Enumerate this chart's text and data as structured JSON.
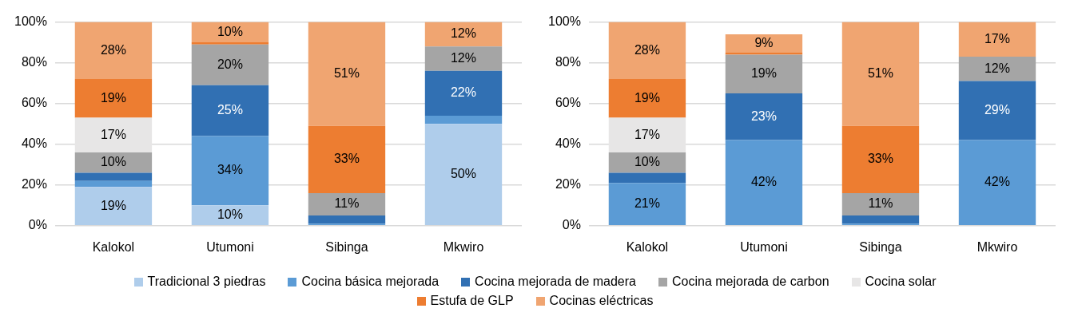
{
  "chart_data": [
    {
      "type": "bar",
      "stacked": true,
      "categories": [
        "Kalokol",
        "Utumoni",
        "Sibinga",
        "Mkwiro"
      ],
      "ylim": [
        0,
        100
      ],
      "yticks": [
        {
          "value": 0,
          "label": "0%"
        },
        {
          "value": 20,
          "label": "20%"
        },
        {
          "value": 40,
          "label": "40%"
        },
        {
          "value": 60,
          "label": "60%"
        },
        {
          "value": 80,
          "label": "80%"
        },
        {
          "value": 100,
          "label": "100%"
        }
      ],
      "grid": "y",
      "legend": "bottom",
      "series": [
        {
          "name": "Tradicional 3 piedras",
          "color": "#afcdeb",
          "values": [
            19,
            10,
            0,
            50
          ],
          "value_labels": [
            "19%",
            "10%",
            null,
            "50%"
          ]
        },
        {
          "name": "Cocina básica mejorada",
          "color": "#5b9bd5",
          "values": [
            3,
            34,
            1,
            4
          ],
          "value_labels": [
            null,
            "34%",
            null,
            null
          ]
        },
        {
          "name": "Cocina mejorada de madera",
          "color": "#3170b3",
          "values": [
            4,
            25,
            4,
            22
          ],
          "value_labels": [
            null,
            "25%",
            null,
            "22%"
          ]
        },
        {
          "name": "Cocina mejorada de carbon",
          "color": "#a5a5a5",
          "values": [
            10,
            20,
            11,
            12
          ],
          "value_labels": [
            "10%",
            "20%",
            "11%",
            "12%"
          ]
        },
        {
          "name": "Cocina solar",
          "color": "#e7e6e6",
          "values": [
            17,
            0,
            0,
            0
          ],
          "value_labels": [
            "17%",
            null,
            null,
            null
          ]
        },
        {
          "name": "Estufa de GLP",
          "color": "#ed7d31",
          "values": [
            19,
            1,
            33,
            0
          ],
          "value_labels": [
            "19%",
            null,
            "33%",
            null
          ]
        },
        {
          "name": "Cocinas eléctricas",
          "color": "#f0a571",
          "values": [
            28,
            10,
            51,
            12
          ],
          "value_labels": [
            "28%",
            "10%",
            "51%",
            "12%"
          ]
        }
      ]
    },
    {
      "type": "bar",
      "stacked": true,
      "categories": [
        "Kalokol",
        "Utumoni",
        "Sibinga",
        "Mkwiro"
      ],
      "ylim": [
        0,
        100
      ],
      "yticks": [
        {
          "value": 0,
          "label": "0%"
        },
        {
          "value": 20,
          "label": "20%"
        },
        {
          "value": 40,
          "label": "40%"
        },
        {
          "value": 60,
          "label": "60%"
        },
        {
          "value": 80,
          "label": "80%"
        },
        {
          "value": 100,
          "label": "100%"
        }
      ],
      "grid": "y",
      "series": [
        {
          "color": "#5b9bd5",
          "values": [
            21,
            42,
            1,
            42
          ],
          "value_labels": [
            "21%",
            "42%",
            null,
            "42%"
          ]
        },
        {
          "color": "#3170b3",
          "values": [
            5,
            23,
            4,
            29
          ],
          "value_labels": [
            null,
            "23%",
            null,
            "29%"
          ]
        },
        {
          "color": "#a5a5a5",
          "values": [
            10,
            19,
            11,
            12
          ],
          "value_labels": [
            "10%",
            "19%",
            "11%",
            "12%"
          ]
        },
        {
          "color": "#e7e6e6",
          "values": [
            17,
            0,
            0,
            0
          ],
          "value_labels": [
            "17%",
            null,
            null,
            null
          ]
        },
        {
          "color": "#ed7d31",
          "values": [
            19,
            1,
            33,
            0
          ],
          "value_labels": [
            "19%",
            null,
            "33%",
            null
          ]
        },
        {
          "color": "#f0a571",
          "values": [
            28,
            9,
            51,
            17
          ],
          "value_labels": [
            "28%",
            "9%",
            "51%",
            "17%"
          ]
        }
      ]
    }
  ]
}
